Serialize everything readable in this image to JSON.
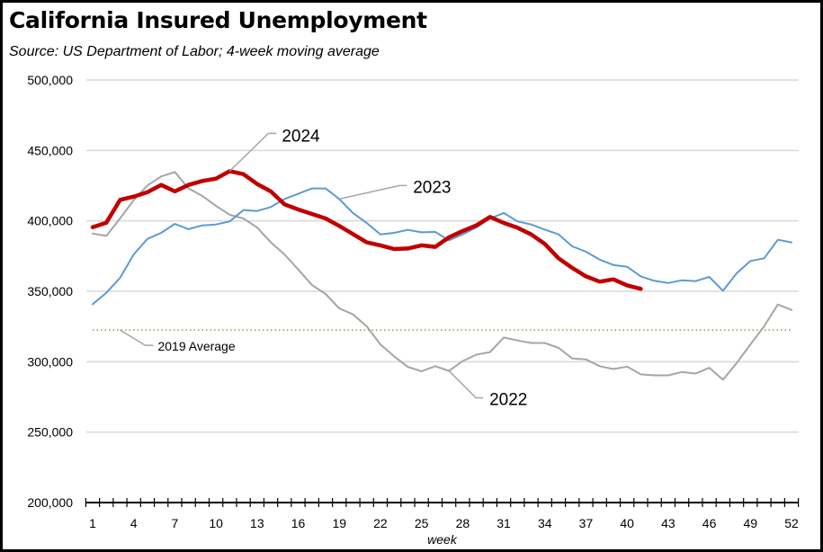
{
  "chart_data": {
    "type": "line",
    "title": "California Insured Unemployment",
    "subtitle": "Source:  US Department of Labor; 4-week moving average",
    "xlabel": "week",
    "ylabel": "",
    "xlim": [
      1,
      52
    ],
    "ylim": [
      200000,
      500000
    ],
    "grid": true,
    "y_ticks": [
      200000,
      250000,
      300000,
      350000,
      400000,
      450000,
      500000
    ],
    "y_tick_labels": [
      "200,000",
      "250,000",
      "300,000",
      "350,000",
      "400,000",
      "450,000",
      "500,000"
    ],
    "x_tick_labels": [
      "1",
      "4",
      "7",
      "10",
      "13",
      "16",
      "19",
      "22",
      "25",
      "28",
      "31",
      "34",
      "37",
      "40",
      "43",
      "46",
      "49",
      "52"
    ],
    "x_tick_values": [
      1,
      4,
      7,
      10,
      13,
      16,
      19,
      22,
      25,
      28,
      31,
      34,
      37,
      40,
      43,
      46,
      49,
      52
    ],
    "series": [
      {
        "name": "2022",
        "color": "#A5A5A5",
        "label_week": 27,
        "values": [
          391000,
          389300,
          401700,
          414700,
          425100,
          431500,
          434700,
          423000,
          417700,
          410700,
          404300,
          401700,
          395300,
          384700,
          376200,
          365500,
          354500,
          348100,
          337900,
          333600,
          325100,
          312300,
          303800,
          296300,
          293200,
          296800,
          293500,
          300500,
          305000,
          306800,
          317200,
          315100,
          313300,
          313300,
          309800,
          302300,
          301600,
          296800,
          294800,
          296500,
          291000,
          290300,
          290300,
          292700,
          291600,
          295700,
          287200,
          299100,
          312300,
          325100,
          340600,
          336800
        ]
      },
      {
        "name": "2023",
        "color": "#5B9BD5",
        "label_week": 19,
        "values": [
          340800,
          348900,
          359600,
          376200,
          387200,
          391500,
          397900,
          394100,
          396800,
          397400,
          399600,
          407700,
          407000,
          409800,
          415500,
          419200,
          423000,
          423000,
          415500,
          405500,
          398500,
          390400,
          391500,
          393600,
          391900,
          392100,
          386200,
          390400,
          395300,
          401700,
          405600,
          399600,
          397400,
          393800,
          390400,
          381900,
          378100,
          372500,
          368700,
          367400,
          360600,
          357400,
          355900,
          357800,
          357200,
          360200,
          350400,
          362800,
          371500,
          373400,
          386600,
          384700
        ]
      },
      {
        "name": "2024",
        "color": "#C00000",
        "label_week": 11,
        "values": [
          395500,
          398700,
          414900,
          417200,
          420400,
          425500,
          420900,
          425500,
          428300,
          430000,
          435300,
          433200,
          426200,
          420900,
          411700,
          408100,
          404900,
          401700,
          396400,
          390600,
          384700,
          382600,
          380000,
          380400,
          382600,
          381500,
          388300,
          392800,
          396800,
          402800,
          398500,
          395100,
          390400,
          383600,
          373400,
          366600,
          360600,
          356800,
          358500,
          354200,
          351700
        ]
      }
    ],
    "reference_lines": [
      {
        "name": "2019 Average",
        "value": 322500,
        "color": "#70AD47",
        "style": "dotted",
        "label_week": 3
      }
    ],
    "legend": "inline-labels"
  }
}
